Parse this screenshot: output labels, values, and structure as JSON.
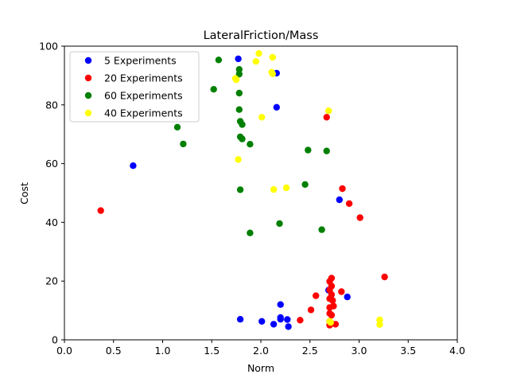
{
  "chart_data": {
    "type": "scatter",
    "title": "LateralFriction/Mass",
    "xlabel": "Norm",
    "ylabel": "Cost",
    "xlim": [
      0.0,
      4.0
    ],
    "ylim": [
      0,
      100
    ],
    "xticks": [
      "0.0",
      "0.5",
      "1.0",
      "1.5",
      "2.0",
      "2.5",
      "3.0",
      "3.5",
      "4.0"
    ],
    "yticks": [
      "0",
      "20",
      "40",
      "60",
      "80",
      "100"
    ],
    "grid": false,
    "legend_position": "top-left",
    "series": [
      {
        "name": "5 Experiments",
        "color": "#0000ff",
        "points": [
          [
            1.77,
            95.7
          ],
          [
            2.16,
            90.8
          ],
          [
            2.16,
            79.2
          ],
          [
            0.7,
            59.3
          ],
          [
            2.8,
            47.7
          ],
          [
            2.69,
            16.9
          ],
          [
            2.88,
            14.6
          ],
          [
            2.2,
            12.0
          ],
          [
            1.79,
            7.0
          ],
          [
            2.2,
            7.0
          ],
          [
            2.2,
            7.6
          ],
          [
            2.27,
            6.9
          ],
          [
            2.01,
            6.3
          ],
          [
            2.13,
            5.3
          ],
          [
            2.28,
            4.5
          ]
        ]
      },
      {
        "name": "20 Experiments",
        "color": "#ff0000",
        "points": [
          [
            2.67,
            75.8
          ],
          [
            2.83,
            51.5
          ],
          [
            2.9,
            46.4
          ],
          [
            3.01,
            41.6
          ],
          [
            0.37,
            44.0
          ],
          [
            3.26,
            21.4
          ],
          [
            2.72,
            21.0
          ],
          [
            2.7,
            19.9
          ],
          [
            2.72,
            18.3
          ],
          [
            2.7,
            17.0
          ],
          [
            2.82,
            16.4
          ],
          [
            2.72,
            15.4
          ],
          [
            2.56,
            15.0
          ],
          [
            2.7,
            14.0
          ],
          [
            2.73,
            13.4
          ],
          [
            2.74,
            11.5
          ],
          [
            2.7,
            11.0
          ],
          [
            2.51,
            10.2
          ],
          [
            2.7,
            9.0
          ],
          [
            2.72,
            8.4
          ],
          [
            2.4,
            6.7
          ],
          [
            2.7,
            6.3
          ],
          [
            2.71,
            5.4
          ],
          [
            2.72,
            5.6
          ],
          [
            2.76,
            5.3
          ],
          [
            2.7,
            5.0
          ]
        ]
      },
      {
        "name": "60 Experiments",
        "color": "#008000",
        "points": [
          [
            1.57,
            95.3
          ],
          [
            1.78,
            92.1
          ],
          [
            1.78,
            90.5
          ],
          [
            1.52,
            85.3
          ],
          [
            1.78,
            84.0
          ],
          [
            1.78,
            78.4
          ],
          [
            1.79,
            74.4
          ],
          [
            1.81,
            73.3
          ],
          [
            1.15,
            72.4
          ],
          [
            1.79,
            69.1
          ],
          [
            1.81,
            68.4
          ],
          [
            1.21,
            66.7
          ],
          [
            1.89,
            66.6
          ],
          [
            2.48,
            64.6
          ],
          [
            2.67,
            64.3
          ],
          [
            2.45,
            52.9
          ],
          [
            1.79,
            51.1
          ],
          [
            2.19,
            39.6
          ],
          [
            2.62,
            37.5
          ],
          [
            1.89,
            36.4
          ]
        ]
      },
      {
        "name": "40 Experiments",
        "color": "#ffff00",
        "points": [
          [
            1.98,
            97.5
          ],
          [
            2.12,
            96.2
          ],
          [
            1.95,
            94.8
          ],
          [
            2.11,
            91.1
          ],
          [
            2.12,
            90.6
          ],
          [
            1.74,
            89.0
          ],
          [
            1.75,
            88.6
          ],
          [
            2.69,
            78.0
          ],
          [
            2.01,
            75.8
          ],
          [
            1.77,
            61.4
          ],
          [
            2.13,
            51.2
          ],
          [
            2.26,
            51.8
          ],
          [
            2.7,
            6.3
          ],
          [
            2.71,
            5.9
          ],
          [
            3.21,
            6.8
          ],
          [
            3.21,
            5.2
          ]
        ]
      }
    ]
  }
}
